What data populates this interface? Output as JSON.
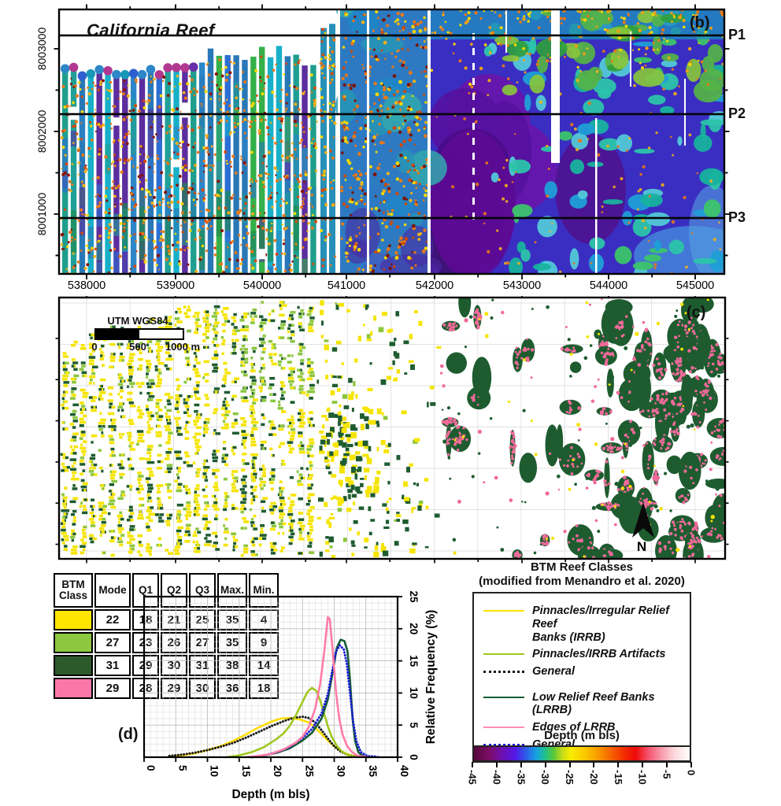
{
  "panel_b": {
    "panel_label": "(b)",
    "map_title": "California Reef",
    "x_ticks": [
      "538000",
      "539000",
      "540000",
      "541000",
      "542000",
      "543000",
      "544000",
      "545000"
    ],
    "y_ticks": [
      "8003000",
      "8002000",
      "8001000"
    ],
    "profile_lines": [
      "P1",
      "P2",
      "P3"
    ]
  },
  "panel_c": {
    "panel_label": "(c)",
    "scalebar_title": "UTM WGS84",
    "scalebar_ticks": [
      "0",
      "500",
      "1000 m"
    ],
    "north_label": "N",
    "class_colors": {
      "pinnacles_irrb": "#F5E400",
      "irrb_artifacts": "#8CC63F",
      "lrrb": "#1E5C30",
      "edges_lrrb": "#F06A9A"
    }
  },
  "panel_d": {
    "panel_label": "(d)",
    "table": {
      "headers": [
        "BTM Class",
        "Mode",
        "Q1",
        "Q2",
        "Q3",
        "Max.",
        "Min."
      ],
      "rows": [
        {
          "class_color": "#FFE600",
          "values": [
            "22",
            "18",
            "21",
            "25",
            "35",
            "4"
          ]
        },
        {
          "class_color": "#8DC63F",
          "values": [
            "27",
            "23",
            "26",
            "27",
            "35",
            "9"
          ]
        },
        {
          "class_color": "#2D5A2B",
          "values": [
            "31",
            "29",
            "30",
            "31",
            "38",
            "14"
          ]
        },
        {
          "class_color": "#F978A8",
          "values": [
            "29",
            "28",
            "29",
            "30",
            "36",
            "18"
          ]
        }
      ]
    }
  },
  "chart_data": {
    "type": "line",
    "title": "",
    "xlabel": "Depth (m bls)",
    "ylabel": "Relative Frequency (%)",
    "xlim": [
      0,
      40
    ],
    "ylim": [
      0,
      25
    ],
    "x_ticks": [
      "0",
      "5",
      "10",
      "15",
      "20",
      "25",
      "30",
      "35",
      "40"
    ],
    "y_ticks": [
      "0",
      "5",
      "10",
      "15",
      "20",
      "25"
    ],
    "grid": "on",
    "legend_position": "separate-box-right",
    "series": [
      {
        "name": "Pinnacles/Irregular Relief Reef Banks (IRRB)",
        "color": "#FFDD00",
        "style": "solid",
        "points": [
          [
            4,
            0.1
          ],
          [
            6,
            0.3
          ],
          [
            8,
            0.6
          ],
          [
            10,
            1.1
          ],
          [
            12,
            1.7
          ],
          [
            14,
            2.5
          ],
          [
            16,
            3.5
          ],
          [
            18,
            4.6
          ],
          [
            20,
            5.5
          ],
          [
            21.5,
            6.0
          ],
          [
            23,
            6.1
          ],
          [
            24.5,
            5.9
          ],
          [
            26,
            5.4
          ],
          [
            27,
            4.6
          ],
          [
            28,
            3.6
          ],
          [
            29,
            2.6
          ],
          [
            30,
            1.7
          ],
          [
            31,
            1.0
          ],
          [
            32,
            0.5
          ],
          [
            33,
            0.2
          ],
          [
            34.5,
            0.05
          ],
          [
            36,
            0
          ]
        ]
      },
      {
        "name": "General (IRRB)",
        "color": "#151515",
        "style": "dotted",
        "points": [
          [
            4,
            0.2
          ],
          [
            6,
            0.4
          ],
          [
            8,
            0.7
          ],
          [
            10,
            1.1
          ],
          [
            12,
            1.6
          ],
          [
            14,
            2.2
          ],
          [
            16,
            3.0
          ],
          [
            18,
            3.9
          ],
          [
            20,
            4.8
          ],
          [
            22,
            5.6
          ],
          [
            23.5,
            6.1
          ],
          [
            25,
            6.3
          ],
          [
            26,
            6.1
          ],
          [
            27,
            5.4
          ],
          [
            28,
            4.2
          ],
          [
            29,
            2.9
          ],
          [
            30,
            1.7
          ],
          [
            31,
            0.9
          ],
          [
            32,
            0.4
          ],
          [
            33,
            0.15
          ],
          [
            34,
            0
          ]
        ]
      },
      {
        "name": "Pinnacles/IRRB Artifacts",
        "color": "#9FC820",
        "style": "solid",
        "points": [
          [
            13,
            0
          ],
          [
            15,
            0.3
          ],
          [
            17,
            0.8
          ],
          [
            19,
            1.6
          ],
          [
            21,
            2.9
          ],
          [
            22,
            3.7
          ],
          [
            23,
            4.9
          ],
          [
            24,
            6.6
          ],
          [
            25,
            8.6
          ],
          [
            25.8,
            10.2
          ],
          [
            26.5,
            10.8
          ],
          [
            27.2,
            10.3
          ],
          [
            27.8,
            8.8
          ],
          [
            28.4,
            6.8
          ],
          [
            29,
            4.8
          ],
          [
            29.6,
            3.2
          ],
          [
            30.4,
            1.8
          ],
          [
            31.2,
            0.9
          ],
          [
            32,
            0.4
          ],
          [
            33,
            0.1
          ],
          [
            34,
            0
          ]
        ]
      },
      {
        "name": "Low Relief Reef Banks (LRRB)",
        "color": "#155C36",
        "style": "solid",
        "points": [
          [
            17,
            0
          ],
          [
            19,
            0.3
          ],
          [
            21,
            0.7
          ],
          [
            23,
            1.4
          ],
          [
            25,
            2.6
          ],
          [
            26.5,
            3.8
          ],
          [
            28,
            6.0
          ],
          [
            29,
            9.0
          ],
          [
            29.8,
            13.5
          ],
          [
            30.4,
            17.0
          ],
          [
            31,
            18.3
          ],
          [
            31.6,
            18.1
          ],
          [
            32.1,
            16.5
          ],
          [
            32.5,
            12.0
          ],
          [
            32.9,
            6.0
          ],
          [
            33.3,
            2.5
          ],
          [
            33.8,
            0.8
          ],
          [
            34.5,
            0.2
          ],
          [
            35.5,
            0
          ]
        ]
      },
      {
        "name": "General (LRRB)",
        "color": "#1818D8",
        "style": "dotted",
        "points": [
          [
            17,
            0
          ],
          [
            19,
            0.3
          ],
          [
            21,
            0.8
          ],
          [
            23,
            1.6
          ],
          [
            25,
            3.0
          ],
          [
            26.5,
            4.4
          ],
          [
            28,
            6.8
          ],
          [
            29,
            9.8
          ],
          [
            29.7,
            13.5
          ],
          [
            30.3,
            16.5
          ],
          [
            30.9,
            17.4
          ],
          [
            31.5,
            16.8
          ],
          [
            32,
            14.5
          ],
          [
            32.5,
            10.0
          ],
          [
            33,
            5.5
          ],
          [
            33.5,
            2.5
          ],
          [
            34.2,
            0.8
          ],
          [
            35.2,
            0.2
          ],
          [
            36.5,
            0.1
          ],
          [
            37,
            0
          ]
        ]
      },
      {
        "name": "Edges of LRRB",
        "color": "#FF7BA8",
        "style": "solid",
        "points": [
          [
            16,
            0
          ],
          [
            18,
            0.2
          ],
          [
            20,
            0.5
          ],
          [
            22,
            1.2
          ],
          [
            24,
            2.3
          ],
          [
            25,
            3.2
          ],
          [
            26,
            4.7
          ],
          [
            27,
            7.6
          ],
          [
            27.8,
            11.5
          ],
          [
            28.5,
            17.0
          ],
          [
            29,
            21.8
          ],
          [
            29.3,
            21.5
          ],
          [
            29.8,
            16.0
          ],
          [
            30.3,
            10.0
          ],
          [
            30.8,
            6.0
          ],
          [
            31.3,
            3.6
          ],
          [
            32,
            1.8
          ],
          [
            32.8,
            0.8
          ],
          [
            33.6,
            0.3
          ],
          [
            34.5,
            0.1
          ],
          [
            35.5,
            0
          ]
        ]
      }
    ]
  },
  "legend": {
    "title_line1": "BTM Reef Classes",
    "title_line2": "(modified from Menandro et al. 2020)",
    "items": [
      {
        "label_lines": [
          "Pinnacles/Irregular Relief Reef",
          "Banks (IRRB)"
        ],
        "color": "#FFE000",
        "style": "solid"
      },
      {
        "label_lines": [
          "Pinnacles/IRRB Artifacts"
        ],
        "color": "#9FC820",
        "style": "solid"
      },
      {
        "label_lines": [
          "General"
        ],
        "color": "#151515",
        "style": "dotted"
      },
      {
        "label_lines": [
          "Low Relief Reef Banks (LRRB)"
        ],
        "color": "#155C36",
        "style": "solid",
        "group_break": true
      },
      {
        "label_lines": [
          "Edges of LRRB"
        ],
        "color": "#FF8FB0",
        "style": "solid"
      },
      {
        "label_lines": [
          "General"
        ],
        "color": "#1818D8",
        "style": "dotted"
      }
    ]
  },
  "colorbar": {
    "title": "Depth (m bls)",
    "ticks": [
      "-45",
      "-40",
      "-35",
      "-30",
      "-25",
      "-20",
      "-15",
      "-10",
      "-5",
      "0"
    ],
    "gradient": [
      {
        "p": 0,
        "c": "#57093a"
      },
      {
        "p": 7,
        "c": "#7b0d66"
      },
      {
        "p": 13,
        "c": "#6d10b0"
      },
      {
        "p": 19,
        "c": "#5418e6"
      },
      {
        "p": 24,
        "c": "#2e5ae8"
      },
      {
        "p": 29,
        "c": "#16a4e0"
      },
      {
        "p": 33,
        "c": "#1fc08c"
      },
      {
        "p": 37,
        "c": "#5ac838"
      },
      {
        "p": 41,
        "c": "#c6dc18"
      },
      {
        "p": 45,
        "c": "#f8ec00"
      },
      {
        "p": 52,
        "c": "#fcc400"
      },
      {
        "p": 58,
        "c": "#f89600"
      },
      {
        "p": 64,
        "c": "#f55f00"
      },
      {
        "p": 70,
        "c": "#f22a00"
      },
      {
        "p": 75,
        "c": "#ee0a0a"
      },
      {
        "p": 81,
        "c": "#f45570"
      },
      {
        "p": 87,
        "c": "#f89cac"
      },
      {
        "p": 93,
        "c": "#fcd9dc"
      },
      {
        "p": 100,
        "c": "#ffffff"
      }
    ]
  }
}
